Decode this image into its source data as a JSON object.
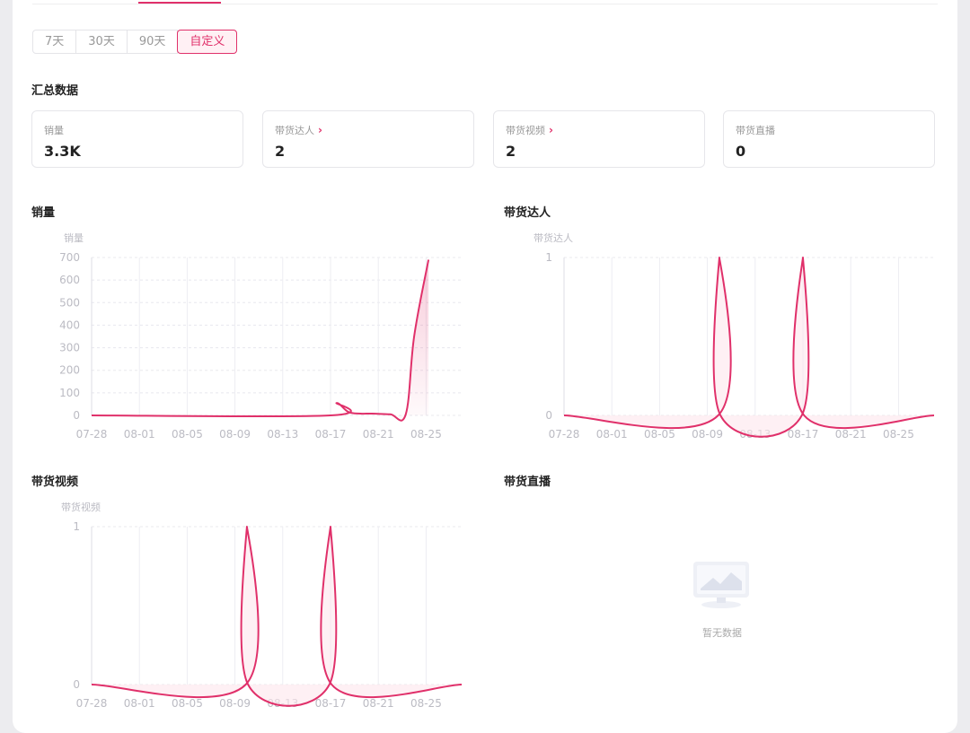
{
  "date_range": {
    "options": [
      "7天",
      "30天",
      "90天",
      "自定义"
    ],
    "selected": "自定义"
  },
  "summary": {
    "title": "汇总数据",
    "stats": [
      {
        "label": "销量",
        "value": "3.3K",
        "link": false
      },
      {
        "label": "带货达人",
        "value": "2",
        "link": true
      },
      {
        "label": "带货视频",
        "value": "2",
        "link": true
      },
      {
        "label": "带货直播",
        "value": "0",
        "link": false
      }
    ]
  },
  "colors": {
    "accent": "#e0306a",
    "fill": "#fde6ec",
    "grid": "#e8e8ee",
    "axis_text": "#bbbbc3"
  },
  "charts": {
    "sales": {
      "title": "销量"
    },
    "talents": {
      "title": "带货达人"
    },
    "videos": {
      "title": "带货视频"
    },
    "live": {
      "title": "带货直播",
      "empty_text": "暂无数据"
    }
  },
  "chart_data": [
    {
      "type": "line",
      "title": "销量",
      "ylabel": "销量",
      "xlabel": "",
      "x": [
        "07-28",
        "08-01",
        "08-05",
        "08-09",
        "08-13",
        "08-17",
        "08-21",
        "08-25"
      ],
      "ylim": [
        0,
        700
      ],
      "yticks": [
        0,
        100,
        200,
        300,
        400,
        500,
        600,
        700
      ],
      "series": [
        {
          "values": [
            [
              0,
              0
            ],
            [
              20,
              0
            ],
            [
              20.5,
              55
            ],
            [
              21.5,
              15
            ],
            [
              22.5,
              8
            ],
            [
              23.5,
              8
            ],
            [
              25,
              5
            ],
            [
              26.3,
              5
            ],
            [
              27,
              350
            ],
            [
              28.2,
              690
            ]
          ]
        }
      ],
      "area_fill": true,
      "grid": true
    },
    {
      "type": "line",
      "title": "带货达人",
      "ylabel": "带货达人",
      "xlabel": "",
      "x": [
        "07-28",
        "08-01",
        "08-05",
        "08-09",
        "08-13",
        "08-17",
        "08-21",
        "08-25"
      ],
      "ylim": [
        0,
        1
      ],
      "yticks": [
        0,
        1
      ],
      "series": [
        {
          "values": [
            [
              0,
              0
            ],
            [
              12.9,
              0
            ],
            [
              13,
              1
            ],
            [
              13.1,
              0
            ],
            [
              19.9,
              0
            ],
            [
              20,
              1
            ],
            [
              20.1,
              0
            ],
            [
              31,
              0
            ]
          ]
        }
      ],
      "grid": true
    },
    {
      "type": "line",
      "title": "带货视频",
      "ylabel": "带货视频",
      "xlabel": "",
      "x": [
        "07-28",
        "08-01",
        "08-05",
        "08-09",
        "08-13",
        "08-17",
        "08-21",
        "08-25"
      ],
      "ylim": [
        0,
        1
      ],
      "yticks": [
        0,
        1
      ],
      "series": [
        {
          "values": [
            [
              0,
              0
            ],
            [
              12.9,
              0
            ],
            [
              13,
              1
            ],
            [
              13.1,
              0
            ],
            [
              19.9,
              0
            ],
            [
              20,
              1
            ],
            [
              20.1,
              0
            ],
            [
              31,
              0
            ]
          ]
        }
      ],
      "grid": true
    }
  ]
}
